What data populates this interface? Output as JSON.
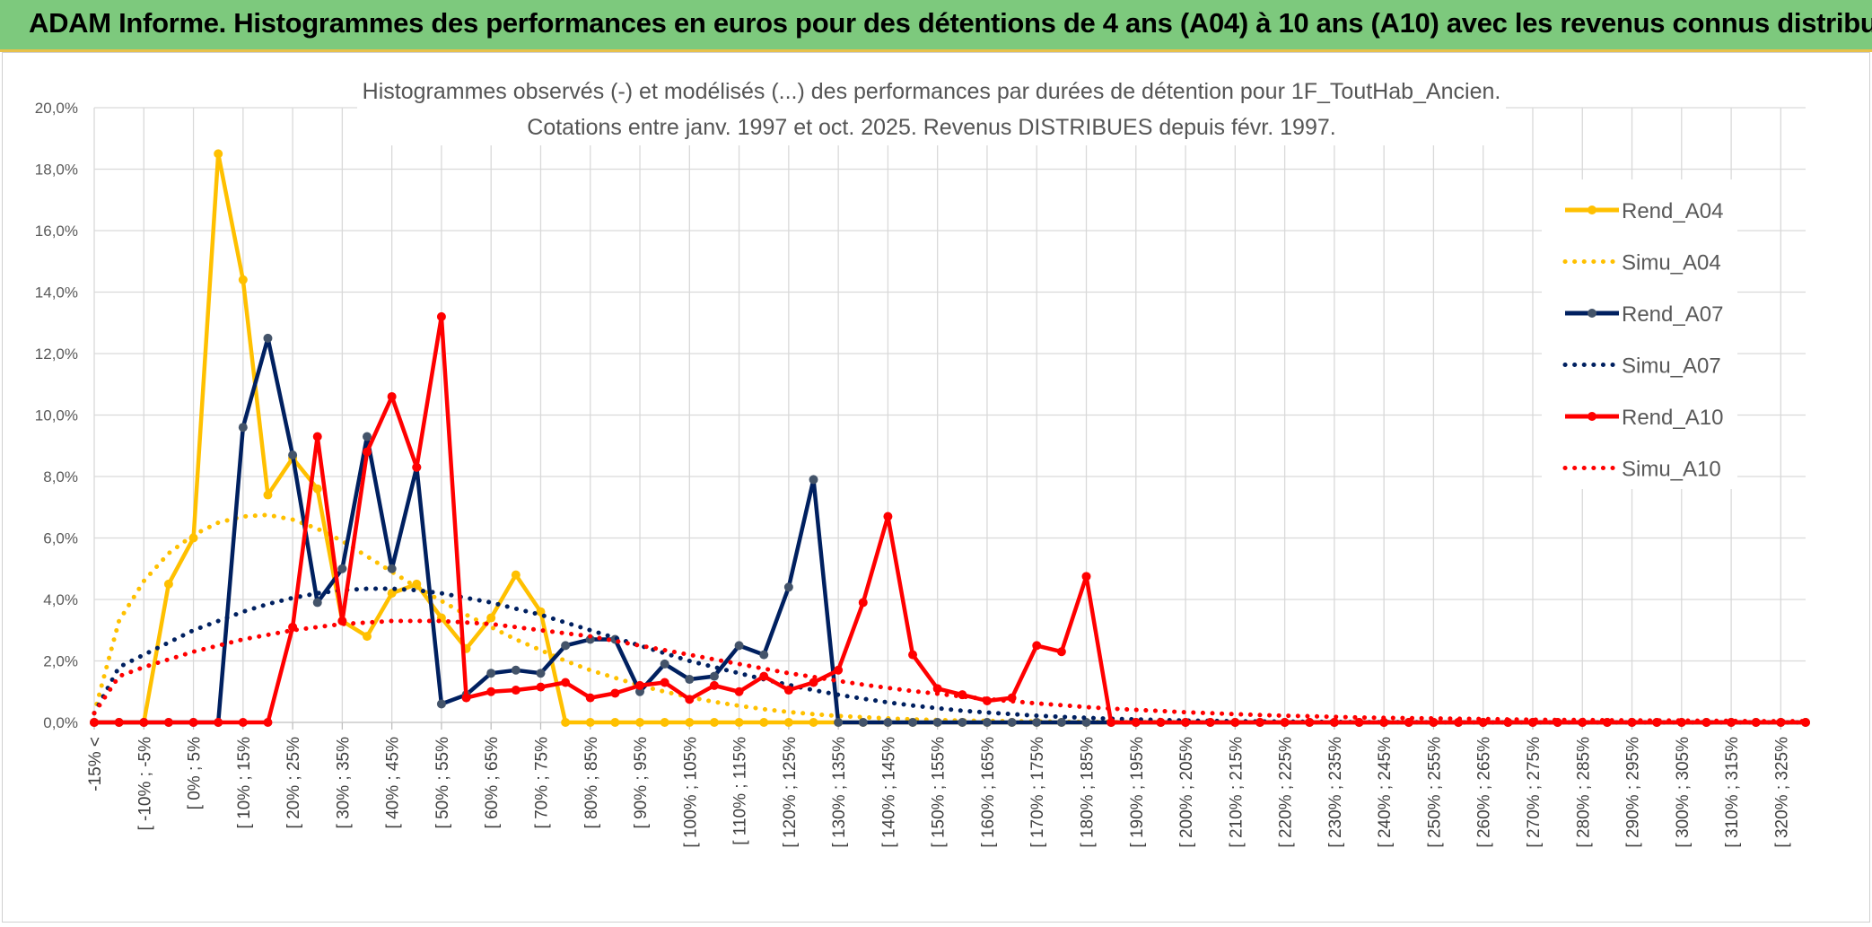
{
  "header": {
    "title": "ADAM Informe. Histogrammes des performances en euros pour des détentions de 4 ans (A04) à 10 ans (A10) avec les revenus connus distribués"
  },
  "chart_data": {
    "type": "line",
    "title": "Histogrammes observés (-) et modélisés (...) des performances par durées de détention pour 1F_ToutHab_Ancien.",
    "subtitle": "Cotations entre janv. 1997 et oct. 2025. Revenus DISTRIBUES depuis févr. 1997.",
    "ylim": [
      0,
      20
    ],
    "y_ticks": [
      "0,0%",
      "2,0%",
      "4,0%",
      "6,0%",
      "8,0%",
      "10,0%",
      "12,0%",
      "14,0%",
      "16,0%",
      "18,0%",
      "20,0%"
    ],
    "grid": true,
    "legend_position": "right",
    "x_labels": [
      "-15% <",
      "[ -10% ; -5%",
      "[ 0% ; 5%",
      "[ 10% ; 15%",
      "[ 20% ; 25%",
      "[ 30% ; 35%",
      "[ 40% ; 45%",
      "[ 50% ; 55%",
      "[ 60% ; 65%",
      "[ 70% ; 75%",
      "[ 80% ; 85%",
      "[ 90% ; 95%",
      "[ 100% ; 105%",
      "[ 110% ; 115%",
      "[ 120% ; 125%",
      "[ 130% ; 135%",
      "[ 140% ; 145%",
      "[ 150% ; 155%",
      "[ 160% ; 165%",
      "[ 170% ; 175%",
      "[ 180% ; 185%",
      "[ 190% ; 195%",
      "[ 200% ; 205%",
      "[ 210% ; 215%",
      "[ 220% ; 225%",
      "[ 230% ; 235%",
      "[ 240% ; 245%",
      "[ 250% ; 255%",
      "[ 260% ; 265%",
      "[ 270% ; 275%",
      "[ 280% ; 285%",
      "[ 290% ; 295%",
      "[ 300% ; 305%",
      "[ 310% ; 315%",
      "[ 320% ; 325%"
    ],
    "x_label_every": 2,
    "num_categories": 70,
    "series": [
      {
        "name": "Rend_A04",
        "color": "#ffc000",
        "style": "solid",
        "values": [
          0,
          0,
          0,
          4.5,
          6.0,
          18.5,
          14.4,
          7.4,
          8.6,
          7.6,
          3.3,
          2.8,
          4.2,
          4.5,
          3.4,
          2.4,
          3.4,
          4.8,
          3.6,
          0,
          0,
          0,
          0,
          0,
          0,
          0,
          0,
          0,
          0,
          0,
          0,
          0,
          0,
          0,
          0,
          0,
          0,
          0,
          0,
          0,
          0,
          0,
          0,
          0,
          0,
          0,
          0,
          0,
          0,
          0,
          0,
          0,
          0,
          0,
          0,
          0,
          0,
          0,
          0,
          0,
          0,
          0,
          0,
          0,
          0,
          0,
          0,
          0,
          0,
          0
        ]
      },
      {
        "name": "Simu_A04",
        "color": "#ffc000",
        "style": "dotted",
        "values": [
          0.3,
          3.3,
          4.6,
          5.5,
          6.1,
          6.5,
          6.7,
          6.75,
          6.6,
          6.3,
          5.9,
          5.4,
          4.9,
          4.4,
          3.95,
          3.5,
          3.1,
          2.7,
          2.35,
          2.0,
          1.7,
          1.45,
          1.2,
          1.0,
          0.82,
          0.67,
          0.54,
          0.43,
          0.34,
          0.27,
          0.21,
          0.17,
          0.13,
          0.1,
          0.08,
          0.06,
          0.05,
          0.04,
          0.03,
          0.02,
          0.015,
          0.01,
          0.01,
          0.01,
          0,
          0,
          0,
          0,
          0,
          0,
          0,
          0,
          0,
          0,
          0,
          0,
          0,
          0,
          0,
          0,
          0,
          0,
          0,
          0,
          0,
          0,
          0,
          0,
          0,
          0
        ]
      },
      {
        "name": "Rend_A07",
        "color": "#002060",
        "style": "solid",
        "values": [
          0,
          0,
          0,
          0,
          0,
          0,
          9.6,
          12.5,
          8.7,
          3.9,
          5.0,
          9.3,
          5.0,
          8.3,
          0.6,
          0.9,
          1.6,
          1.7,
          1.6,
          2.5,
          2.7,
          2.7,
          1.0,
          1.9,
          1.4,
          1.5,
          2.5,
          2.2,
          4.4,
          7.9,
          0,
          0,
          0,
          0,
          0,
          0,
          0,
          0,
          0,
          0,
          0,
          0,
          0,
          0,
          0,
          0,
          0,
          0,
          0,
          0,
          0,
          0,
          0,
          0,
          0,
          0,
          0,
          0,
          0,
          0,
          0,
          0,
          0,
          0,
          0,
          0,
          0,
          0,
          0,
          0
        ]
      },
      {
        "name": "Simu_A07",
        "color": "#002060",
        "style": "dotted",
        "values": [
          0.3,
          1.8,
          2.2,
          2.6,
          3.0,
          3.3,
          3.6,
          3.85,
          4.05,
          4.2,
          4.3,
          4.35,
          4.35,
          4.3,
          4.2,
          4.05,
          3.9,
          3.7,
          3.5,
          3.25,
          3.0,
          2.75,
          2.5,
          2.25,
          2.0,
          1.8,
          1.6,
          1.4,
          1.22,
          1.05,
          0.9,
          0.77,
          0.65,
          0.55,
          0.46,
          0.38,
          0.32,
          0.27,
          0.22,
          0.18,
          0.15,
          0.12,
          0.1,
          0.08,
          0.06,
          0.05,
          0.04,
          0.03,
          0.025,
          0.02,
          0.015,
          0.01,
          0.01,
          0.01,
          0,
          0,
          0,
          0,
          0,
          0,
          0,
          0,
          0,
          0,
          0,
          0,
          0,
          0,
          0,
          0
        ]
      },
      {
        "name": "Rend_A10",
        "color": "#ff0000",
        "style": "solid",
        "values": [
          0,
          0,
          0,
          0,
          0,
          0,
          0,
          0,
          3.1,
          9.3,
          3.3,
          8.8,
          10.6,
          8.3,
          13.2,
          0.8,
          1.0,
          1.05,
          1.15,
          1.3,
          0.8,
          0.95,
          1.2,
          1.3,
          0.75,
          1.2,
          1.0,
          1.5,
          1.05,
          1.3,
          1.7,
          3.9,
          6.7,
          2.2,
          1.1,
          0.9,
          0.7,
          0.8,
          2.5,
          2.3,
          4.75,
          0,
          0,
          0,
          0,
          0,
          0,
          0,
          0,
          0,
          0,
          0,
          0,
          0,
          0,
          0,
          0,
          0,
          0,
          0,
          0,
          0,
          0,
          0,
          0,
          0,
          0,
          0,
          0,
          0
        ]
      },
      {
        "name": "Simu_A10",
        "color": "#ff0000",
        "style": "dotted",
        "values": [
          0.3,
          1.5,
          1.8,
          2.05,
          2.3,
          2.5,
          2.7,
          2.85,
          3.0,
          3.1,
          3.2,
          3.25,
          3.3,
          3.3,
          3.3,
          3.25,
          3.2,
          3.1,
          3.0,
          2.9,
          2.8,
          2.65,
          2.5,
          2.35,
          2.2,
          2.05,
          1.9,
          1.75,
          1.6,
          1.48,
          1.35,
          1.23,
          1.12,
          1.02,
          0.93,
          0.84,
          0.76,
          0.69,
          0.62,
          0.56,
          0.5,
          0.45,
          0.41,
          0.37,
          0.33,
          0.3,
          0.27,
          0.24,
          0.22,
          0.2,
          0.18,
          0.16,
          0.15,
          0.14,
          0.13,
          0.12,
          0.11,
          0.1,
          0.09,
          0.08,
          0.08,
          0.07,
          0.07,
          0.06,
          0.06,
          0.05,
          0.05,
          0.04,
          0.04,
          0.04
        ]
      }
    ]
  }
}
